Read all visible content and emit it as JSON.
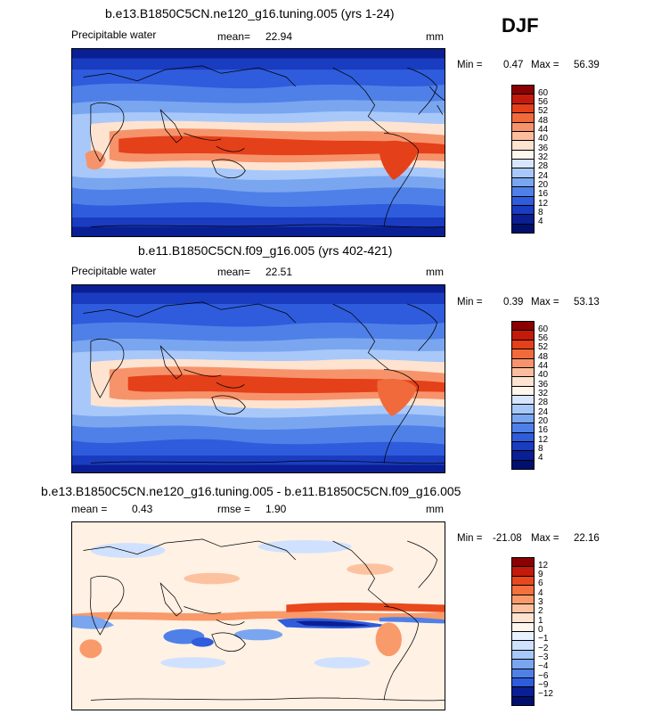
{
  "season": "DJF",
  "panels": [
    {
      "title": "b.e13.B1850C5CN.ne120_g16.tuning.005 (yrs 1-24)",
      "left_label": "Precipitable water",
      "mean_label": "mean=",
      "mean_value": "22.94",
      "units": "mm",
      "min_label": "Min =",
      "min_value": "0.47",
      "max_label": "Max =",
      "max_value": "56.39",
      "levels": [
        "60",
        "56",
        "52",
        "48",
        "44",
        "40",
        "36",
        "32",
        "28",
        "24",
        "20",
        "16",
        "12",
        "8",
        "4"
      ]
    },
    {
      "title": "b.e11.B1850C5CN.f09_g16.005 (yrs 402-421)",
      "left_label": "Precipitable water",
      "mean_label": "mean=",
      "mean_value": "22.51",
      "units": "mm",
      "min_label": "Min =",
      "min_value": "0.39",
      "max_label": "Max =",
      "max_value": "53.13",
      "levels": [
        "60",
        "56",
        "52",
        "48",
        "44",
        "40",
        "36",
        "32",
        "28",
        "24",
        "20",
        "16",
        "12",
        "8",
        "4"
      ]
    },
    {
      "title": "b.e13.B1850C5CN.ne120_g16.tuning.005 - b.e11.B1850C5CN.f09_g16.005",
      "mean_label": "mean =",
      "mean_value": "0.43",
      "rmse_label": "rmse =",
      "rmse_value": "1.90",
      "units": "mm",
      "min_label": "Min =",
      "min_value": "-21.08",
      "max_label": "Max =",
      "max_value": "22.16",
      "levels": [
        "12",
        "9",
        "6",
        "4",
        "3",
        "2",
        "1",
        "0",
        "−1",
        "−2",
        "−3",
        "−4",
        "−6",
        "−9",
        "−12"
      ]
    }
  ],
  "colors": {
    "abs_scale": [
      "#8b0000",
      "#c41a0a",
      "#e4401a",
      "#f06a3c",
      "#f7936b",
      "#fbbd9e",
      "#fde3d0",
      "#fff6ee",
      "#d6e6ff",
      "#a8c8fa",
      "#7aa6f0",
      "#4f80e8",
      "#2e5cdc",
      "#1a3cc0",
      "#0a1f94",
      "#00106e"
    ],
    "diff_scale": [
      "#8b0000",
      "#c41a0a",
      "#e8481c",
      "#f4703c",
      "#f99a6a",
      "#fcc2a0",
      "#fee3d0",
      "#fff6ee",
      "#e8f1ff",
      "#cfe1ff",
      "#a8c8fa",
      "#7aa6f0",
      "#4f80e8",
      "#2e5cdc",
      "#0a1f94",
      "#00106e"
    ]
  }
}
